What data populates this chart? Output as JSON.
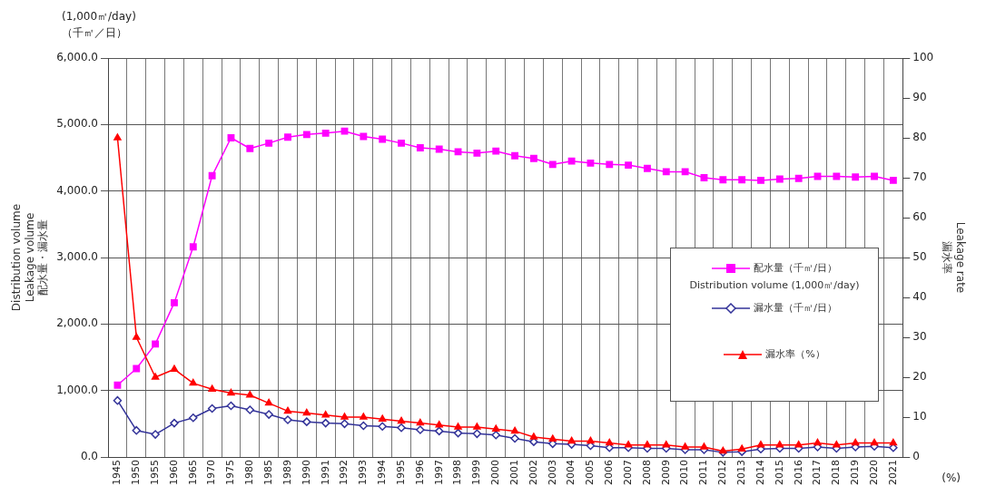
{
  "chart_data": {
    "type": "line",
    "categories": [
      "1945",
      "1950",
      "1955",
      "1960",
      "1965",
      "1970",
      "1975",
      "1980",
      "1985",
      "1989",
      "1990",
      "1991",
      "1992",
      "1993",
      "1994",
      "1995",
      "1996",
      "1997",
      "1998",
      "1999",
      "2000",
      "2001",
      "2002",
      "2003",
      "2004",
      "2005",
      "2006",
      "2007",
      "2008",
      "2009",
      "2010",
      "2011",
      "2012",
      "2013",
      "2014",
      "2015",
      "2016",
      "2017",
      "2018",
      "2019",
      "2020",
      "2021"
    ],
    "series": [
      {
        "name": "配水量（千㎥/日）",
        "color": "#ff00ff",
        "marker": "square",
        "values": [
          1080,
          1330,
          1700,
          2320,
          3160,
          4230,
          4800,
          4640,
          4720,
          4810,
          4850,
          4870,
          4900,
          4820,
          4780,
          4720,
          4650,
          4630,
          4590,
          4570,
          4600,
          4530,
          4490,
          4400,
          4450,
          4420,
          4400,
          4390,
          4340,
          4290,
          4290,
          4200,
          4170,
          4170,
          4160,
          4180,
          4190,
          4220,
          4220,
          4210,
          4220,
          4160
        ]
      },
      {
        "name": "漏水量（千㎥/日）",
        "color": "#333399",
        "marker": "diamond",
        "values": [
          850,
          400,
          340,
          510,
          590,
          730,
          770,
          710,
          640,
          560,
          530,
          510,
          500,
          470,
          460,
          440,
          410,
          390,
          360,
          350,
          330,
          280,
          230,
          200,
          190,
          170,
          140,
          140,
          130,
          130,
          110,
          110,
          70,
          80,
          120,
          130,
          130,
          150,
          130,
          150,
          160,
          140
        ]
      },
      {
        "name": "漏水率（%）",
        "color": "#ff0000",
        "marker": "triangle",
        "axis": "y2",
        "values": [
          80,
          30,
          20,
          22,
          18.5,
          17,
          16,
          15.5,
          13.5,
          11.5,
          11,
          10.5,
          10,
          10,
          9.5,
          9,
          8.5,
          8,
          7.5,
          7.5,
          7,
          6.5,
          5,
          4.5,
          4,
          4,
          3.5,
          3,
          3,
          3,
          2.5,
          2.5,
          1.5,
          2,
          3,
          3,
          3,
          3.5,
          3,
          3.5,
          3.5,
          3.5
        ]
      }
    ],
    "ylim": [
      0,
      6000
    ],
    "yticks": [
      {
        "value": 0,
        "label": "0.0"
      },
      {
        "value": 1000,
        "label": "1,000.0"
      },
      {
        "value": 2000,
        "label": "2,000.0"
      },
      {
        "value": 3000,
        "label": "3,000.0"
      },
      {
        "value": 4000,
        "label": "4,000.0"
      },
      {
        "value": 5000,
        "label": "5,000.0"
      },
      {
        "value": 6000,
        "label": "6,000.0"
      }
    ],
    "y2lim": [
      0,
      100
    ],
    "y2ticks": [
      0,
      10,
      20,
      30,
      40,
      50,
      60,
      70,
      80,
      90,
      100
    ],
    "ylabel": "Distribution volume\nLeakage volume\n配水量・漏水量",
    "y2label": "Leakage rate\n漏水率",
    "annotations": [
      "(1,000㎥/day)",
      "（千㎥／日）",
      "(%)",
      "Distribution volume (1,000㎥/day)"
    ],
    "grid": true,
    "legend": "right",
    "line_style": "solid"
  }
}
